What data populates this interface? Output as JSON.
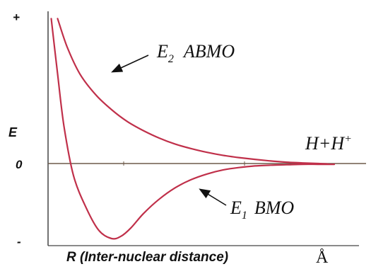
{
  "chart_data": {
    "type": "line",
    "title": "",
    "xlabel": "R (Inter-nuclear distance)",
    "xunit": "Å",
    "ylabel": "E",
    "yticks": [
      "+",
      "0",
      "-"
    ],
    "ylim": [
      -1,
      1
    ],
    "xlim": [
      0,
      1
    ],
    "series": [
      {
        "name": "E2 ABMO",
        "sym": "E",
        "sub": "2",
        "text": "ABMO",
        "color": "#c0304a",
        "x": [
          0.03,
          0.06,
          0.1,
          0.15,
          0.2,
          0.25,
          0.3,
          0.35,
          0.4,
          0.45,
          0.5,
          0.55,
          0.6,
          0.65,
          0.7,
          0.75,
          0.8,
          0.85,
          0.88
        ],
        "y": [
          0.97,
          0.78,
          0.6,
          0.46,
          0.36,
          0.28,
          0.22,
          0.17,
          0.13,
          0.1,
          0.075,
          0.055,
          0.04,
          0.028,
          0.017,
          0.009,
          0.004,
          0.0,
          -0.005
        ]
      },
      {
        "name": "E1 BMO",
        "sym": "E",
        "sub": "1",
        "text": "BMO",
        "color": "#c0304a",
        "x": [
          0.01,
          0.03,
          0.05,
          0.08,
          0.12,
          0.16,
          0.2,
          0.23,
          0.26,
          0.3,
          0.35,
          0.4,
          0.45,
          0.5,
          0.55,
          0.6,
          0.65,
          0.7,
          0.75,
          0.8,
          0.85,
          0.9
        ],
        "y": [
          0.97,
          0.6,
          0.25,
          -0.15,
          -0.55,
          -0.83,
          -0.93,
          -0.9,
          -0.8,
          -0.62,
          -0.44,
          -0.3,
          -0.2,
          -0.13,
          -0.08,
          -0.05,
          -0.03,
          -0.02,
          -0.015,
          -0.01,
          -0.01,
          -0.01
        ]
      }
    ],
    "annotations": {
      "asymptote_label": {
        "main": "H+H",
        "sup": "+"
      }
    }
  }
}
